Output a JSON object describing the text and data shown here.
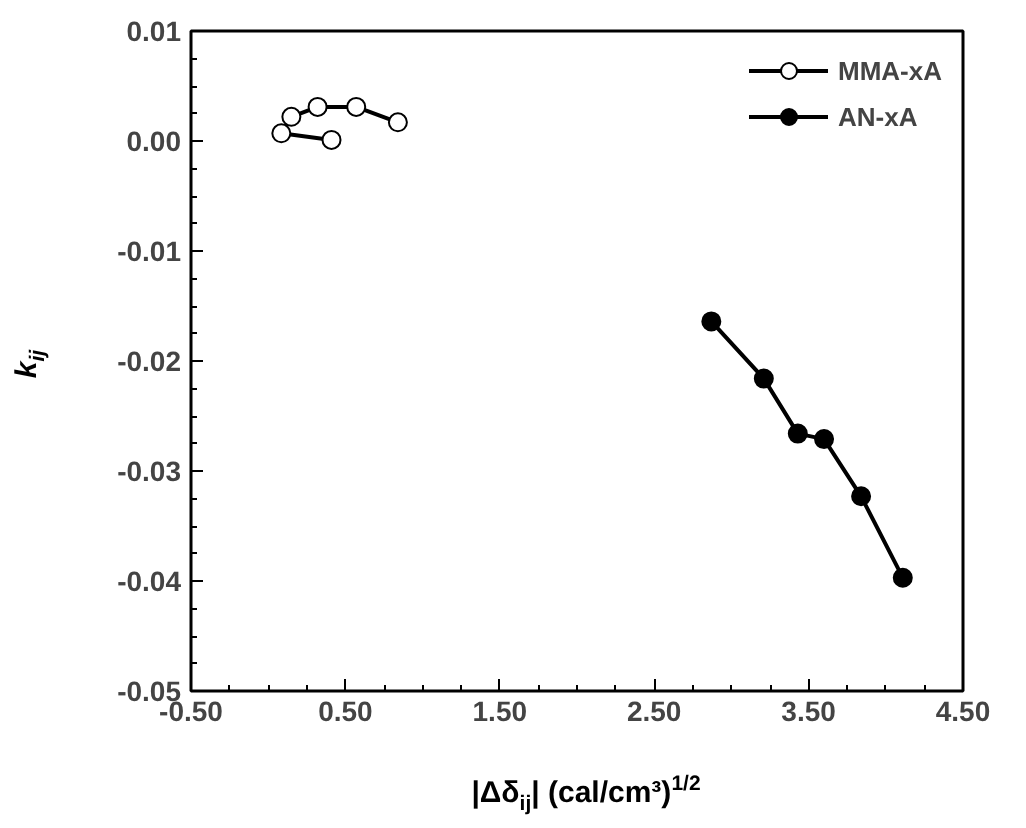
{
  "chart_data": {
    "type": "line",
    "xlabel": "|Δδ$_{ij}$| (cal/cm³)$^{1/2}$",
    "ylabel": "k$_{ij}$",
    "xlim": [
      -0.5,
      4.5
    ],
    "ylim": [
      -0.05,
      0.01
    ],
    "xticks": [
      {
        "value": -0.5,
        "label": "-0.50"
      },
      {
        "value": 0.5,
        "label": "0.50"
      },
      {
        "value": 1.5,
        "label": "1.50"
      },
      {
        "value": 2.5,
        "label": "2.50"
      },
      {
        "value": 3.5,
        "label": "3.50"
      },
      {
        "value": 4.5,
        "label": "4.50"
      }
    ],
    "yticks": [
      {
        "value": -0.05,
        "label": "-0.05"
      },
      {
        "value": -0.04,
        "label": "-0.04"
      },
      {
        "value": -0.03,
        "label": "-0.03"
      },
      {
        "value": -0.02,
        "label": "-0.02"
      },
      {
        "value": -0.01,
        "label": "-0.01"
      },
      {
        "value": 0,
        "label": "0.00"
      },
      {
        "value": 0.01,
        "label": "0.01"
      }
    ],
    "marker": "circle",
    "line_style": "solid",
    "grid": false,
    "legend": "top right",
    "series": [
      {
        "name": "MMA-xA",
        "color": "#ffffff",
        "x": [
          0.41,
          0.085,
          0.15,
          0.32,
          0.57,
          0.84
        ],
        "values": [
          0.0001,
          0.0007,
          0.0022,
          0.0031,
          0.0031,
          0.0017
        ]
      },
      {
        "name": "AN-xA",
        "color": "#000000",
        "x": [
          2.87,
          3.21,
          3.43,
          3.6,
          3.84,
          4.11
        ],
        "values": [
          -0.0164,
          -0.0216,
          -0.0266,
          -0.0271,
          -0.0323,
          -0.0397
        ]
      }
    ]
  }
}
